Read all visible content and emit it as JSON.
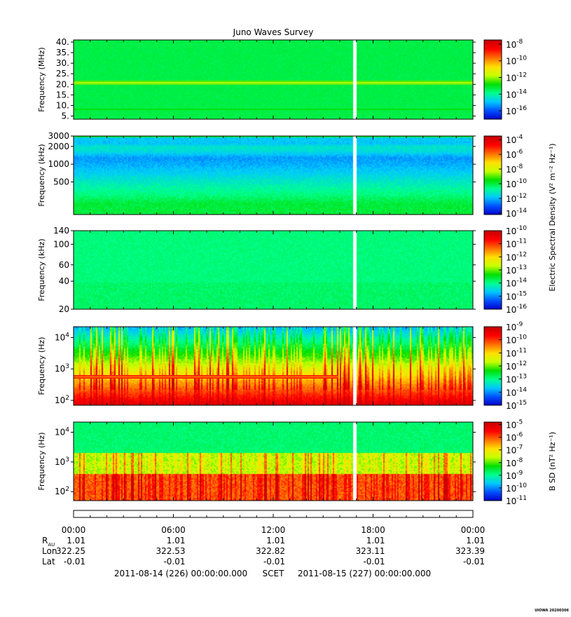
{
  "title": "Juno Waves Survey",
  "colors": {
    "colormap": [
      "#0000c8",
      "#0050ff",
      "#00c8ff",
      "#00ff90",
      "#00e000",
      "#c8ff00",
      "#ffe000",
      "#ff7000",
      "#ff0000",
      "#c80000"
    ],
    "data_gap": "#ffffff"
  },
  "chart_data": [
    {
      "type": "heatmap",
      "ylabel": "Frequency (MHz)",
      "yscale": "linear",
      "ylim": [
        3.5,
        41
      ],
      "yticks": [
        {
          "v": 5,
          "t": "5."
        },
        {
          "v": 10,
          "t": "10."
        },
        {
          "v": 15,
          "t": "15."
        },
        {
          "v": 20,
          "t": "20."
        },
        {
          "v": 25,
          "t": "25."
        },
        {
          "v": 30,
          "t": "30."
        },
        {
          "v": 35,
          "t": "35."
        },
        {
          "v": 40,
          "t": "40."
        }
      ],
      "colorbar": {
        "exp_ticks": [
          "-8",
          "-10",
          "-12",
          "-14",
          "-16"
        ],
        "log_range": [
          -17,
          -7.5
        ],
        "label": ""
      },
      "base_level": 0.38,
      "bands": [
        {
          "y": 21,
          "width": 0.8,
          "level": 0.55
        },
        {
          "y": 8.5,
          "width": 0.6,
          "level": 0.44
        }
      ],
      "data_gap_hours": [
        16.8,
        17.0
      ]
    },
    {
      "type": "heatmap",
      "ylabel": "Frequency (kHz)",
      "yscale": "log",
      "ylim": [
        140,
        3000
      ],
      "yticks": [
        {
          "v": 500,
          "t": "500"
        },
        {
          "v": 1000,
          "t": "1000"
        },
        {
          "v": 2000,
          "t": "2000"
        },
        {
          "v": 3000,
          "t": "3000"
        }
      ],
      "colorbar": {
        "exp_ticks": [
          "-4",
          "-6",
          "-8",
          "-10",
          "-12",
          "-14"
        ],
        "log_range": [
          -14.2,
          -3.5
        ],
        "label": ""
      },
      "base_level": 0.3,
      "profile": [
        [
          140,
          0.4
        ],
        [
          220,
          0.4
        ],
        [
          300,
          0.35
        ],
        [
          450,
          0.3
        ],
        [
          700,
          0.24
        ],
        [
          1000,
          0.2
        ],
        [
          1300,
          0.18
        ],
        [
          1700,
          0.26
        ],
        [
          2000,
          0.28
        ],
        [
          2300,
          0.22
        ],
        [
          2700,
          0.23
        ],
        [
          3000,
          0.23
        ]
      ],
      "data_gap_hours": [
        16.8,
        17.0
      ]
    },
    {
      "type": "heatmap",
      "ylabel": "Frequency (kHz)",
      "yscale": "log",
      "ylim": [
        20,
        140
      ],
      "yticks": [
        {
          "v": 20,
          "t": "20"
        },
        {
          "v": 40,
          "t": "40"
        },
        {
          "v": 60,
          "t": "60"
        },
        {
          "v": 100,
          "t": "100"
        },
        {
          "v": 140,
          "t": "140"
        }
      ],
      "colorbar": {
        "exp_ticks": [
          "-10",
          "-11",
          "-12",
          "-13",
          "-14",
          "-15",
          "-16"
        ],
        "log_range": [
          -16,
          -10
        ],
        "label": "Electric Spectral Density (V² m⁻² Hz⁻¹)"
      },
      "base_level": 0.35,
      "data_gap_hours": [
        16.8,
        17.0
      ]
    },
    {
      "type": "heatmap",
      "ylabel": "Frequency (Hz)",
      "yscale": "log",
      "ylim": [
        70,
        22000
      ],
      "yticks": [
        {
          "v": 100,
          "t": "10",
          "e": "2"
        },
        {
          "v": 1000,
          "t": "10",
          "e": "3"
        },
        {
          "v": 10000,
          "t": "10",
          "e": "4"
        }
      ],
      "colorbar": {
        "exp_ticks": [
          "-9",
          "-10",
          "-11",
          "-12",
          "-13",
          "-14",
          "-15"
        ],
        "log_range": [
          -15,
          -9
        ],
        "label": ""
      },
      "line": {
        "y": 560,
        "hour_start": 0.0,
        "hour_end": 15.9
      },
      "data_gap_hours": [
        16.8,
        17.0
      ]
    },
    {
      "type": "heatmap",
      "ylabel": "Frequency (Hz)",
      "yscale": "log",
      "ylim": [
        50,
        22000
      ],
      "yticks": [
        {
          "v": 100,
          "t": "10",
          "e": "2"
        },
        {
          "v": 1000,
          "t": "10",
          "e": "3"
        },
        {
          "v": 10000,
          "t": "10",
          "e": "4"
        }
      ],
      "colorbar": {
        "exp_ticks": [
          "-5",
          "-6",
          "-7",
          "-8",
          "-9",
          "-10",
          "-11"
        ],
        "log_range": [
          -11,
          -4.8
        ],
        "label": "B SD (nT² Hz⁻¹)"
      },
      "data_gap_hours": [
        16.8,
        17.0
      ]
    }
  ],
  "time_axis": {
    "hours": [
      0,
      6,
      12,
      18,
      24
    ],
    "labels": [
      "00:00",
      "06:00",
      "12:00",
      "18:00",
      "00:00"
    ]
  },
  "ephemeris": {
    "rows": [
      {
        "label": "R",
        "sub": "AU",
        "values": [
          "1.01",
          "1.01",
          "1.01",
          "1.01",
          "1.01"
        ]
      },
      {
        "label": "Lon",
        "sub": "",
        "values": [
          "322.25",
          "322.53",
          "322.82",
          "323.11",
          "323.39"
        ]
      },
      {
        "label": "Lat",
        "sub": "",
        "values": [
          "-0.01",
          "-0.01",
          "-0.01",
          "-0.01",
          "-0.01"
        ]
      }
    ]
  },
  "footer": {
    "start": "2011-08-14 (226) 00:00:00.000",
    "scet": "SCET",
    "end": "2011-08-15 (227) 00:00:00.000"
  },
  "credit": "UIOWA 20200306"
}
